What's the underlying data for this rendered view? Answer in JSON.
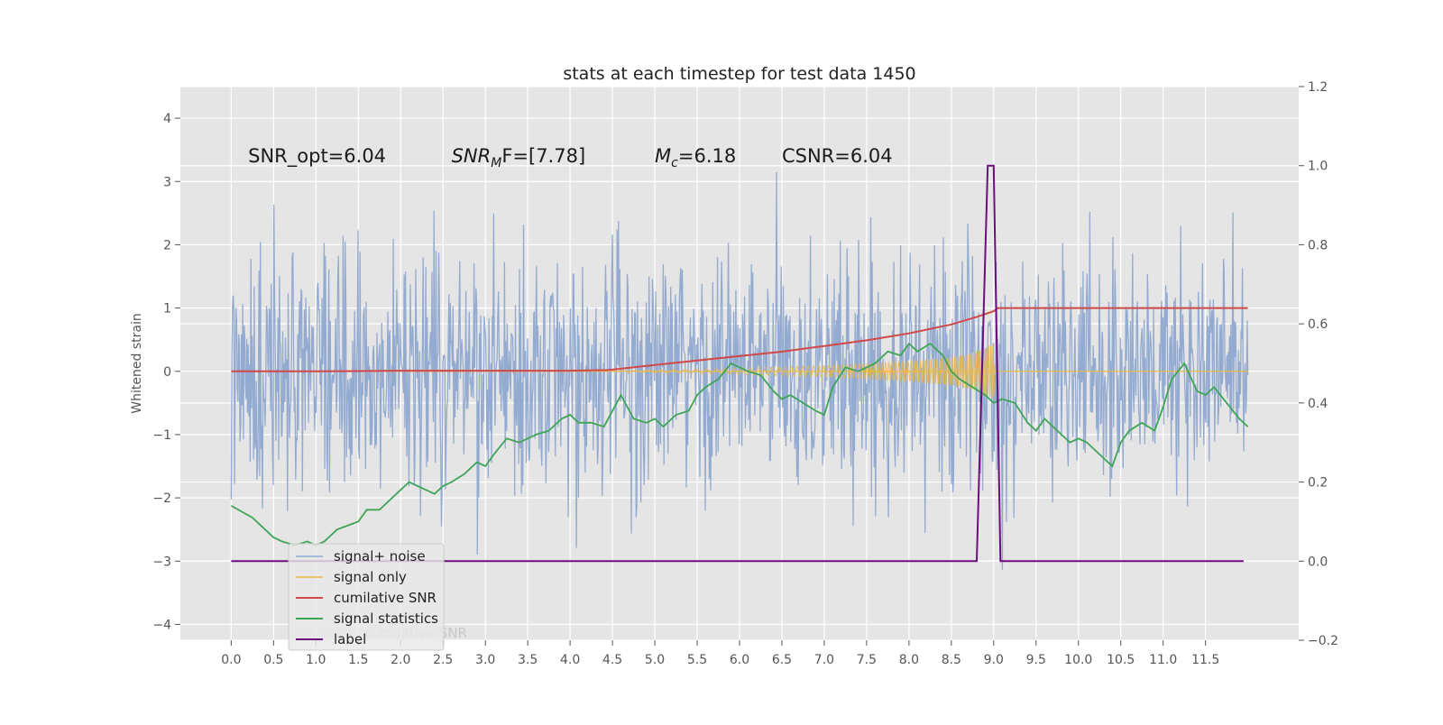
{
  "chart_data": {
    "type": "line",
    "title": "stats at each timestep for test data 1450",
    "xlabel": "",
    "ylabel": "Whitened strain",
    "y2label": "",
    "xlim": [
      -0.6,
      12.6
    ],
    "ylim": [
      -4.25,
      4.5
    ],
    "y2lim": [
      -0.2,
      1.2
    ],
    "grid": true,
    "legend_position": "lower-left",
    "x_ticks": [
      "0.0",
      "0.5",
      "1.0",
      "1.5",
      "2.0",
      "2.5",
      "3.0",
      "3.5",
      "4.0",
      "4.5",
      "5.0",
      "5.5",
      "6.0",
      "6.5",
      "7.0",
      "7.5",
      "8.0",
      "8.5",
      "9.0",
      "9.5",
      "10.0",
      "10.5",
      "11.0",
      "11.5"
    ],
    "y_ticks": [
      "−4",
      "−3",
      "−2",
      "−1",
      "0",
      "1",
      "2",
      "3",
      "4"
    ],
    "y2_ticks": [
      "−0.2",
      "0.0",
      "0.2",
      "0.4",
      "0.6",
      "0.8",
      "1.0",
      "1.2"
    ],
    "annotations": [
      {
        "text": "SNR_opt=6.04",
        "x": 0.2,
        "y": 3.3
      },
      {
        "base": "SNR",
        "sub": "M",
        "after": "F=[7.78]",
        "x": 2.6,
        "y": 3.3
      },
      {
        "base": "M",
        "sub": "c",
        "after": "=6.18",
        "x": 5.0,
        "y": 3.3
      },
      {
        "text": "CSNR=6.04",
        "x": 6.5,
        "y": 3.3
      }
    ],
    "noise": {
      "x_start": 0.0,
      "x_end": 12.0,
      "samples": 1500,
      "sigma": 0.95
    },
    "series": [
      {
        "name": "signal+ noise",
        "color": "#8fa8d0",
        "axis": "left",
        "style": "noise"
      },
      {
        "name": "signal only",
        "color": "#e8b84a",
        "axis": "left",
        "style": "chirp",
        "envelope_x": [
          4.4,
          5.0,
          6.0,
          7.0,
          7.5,
          8.0,
          8.5,
          8.8,
          9.0,
          9.02,
          12.0
        ],
        "envelope_amp": [
          0.0,
          0.02,
          0.05,
          0.09,
          0.12,
          0.16,
          0.22,
          0.3,
          0.45,
          0.0,
          0.0
        ]
      },
      {
        "name": "cumilative SNR",
        "color": "#d04848",
        "axis": "left",
        "x": [
          0.0,
          1.0,
          2.0,
          3.0,
          4.0,
          4.45,
          5.0,
          5.5,
          6.0,
          6.5,
          7.0,
          7.5,
          8.0,
          8.5,
          8.8,
          9.0,
          9.05,
          10.0,
          11.0,
          12.0
        ],
        "y": [
          0.0,
          0.0,
          0.01,
          0.01,
          0.01,
          0.02,
          0.1,
          0.17,
          0.24,
          0.31,
          0.4,
          0.49,
          0.6,
          0.74,
          0.86,
          0.95,
          1.0,
          1.0,
          1.0,
          1.0
        ]
      },
      {
        "name": "signal statistics",
        "color": "#3fa556",
        "axis": "right",
        "x": [
          0.0,
          0.25,
          0.4,
          0.5,
          0.6,
          0.75,
          0.9,
          1.0,
          1.1,
          1.25,
          1.5,
          1.6,
          1.75,
          1.9,
          2.0,
          2.1,
          2.2,
          2.3,
          2.4,
          2.5,
          2.6,
          2.75,
          2.9,
          3.0,
          3.1,
          3.25,
          3.4,
          3.5,
          3.6,
          3.75,
          3.9,
          4.0,
          4.1,
          4.25,
          4.4,
          4.5,
          4.6,
          4.75,
          4.9,
          5.0,
          5.1,
          5.25,
          5.4,
          5.5,
          5.6,
          5.75,
          5.9,
          6.0,
          6.1,
          6.25,
          6.4,
          6.5,
          6.6,
          6.75,
          6.9,
          7.0,
          7.1,
          7.25,
          7.4,
          7.5,
          7.6,
          7.75,
          7.9,
          8.0,
          8.1,
          8.25,
          8.4,
          8.5,
          8.6,
          8.75,
          8.9,
          9.0,
          9.1,
          9.25,
          9.4,
          9.5,
          9.6,
          9.75,
          9.9,
          10.0,
          10.1,
          10.25,
          10.4,
          10.5,
          10.6,
          10.75,
          10.9,
          11.0,
          11.1,
          11.25,
          11.4,
          11.5,
          11.6,
          11.75,
          11.9,
          12.0
        ],
        "y": [
          0.14,
          0.11,
          0.08,
          0.06,
          0.05,
          0.04,
          0.05,
          0.04,
          0.05,
          0.08,
          0.1,
          0.13,
          0.13,
          0.16,
          0.18,
          0.2,
          0.19,
          0.18,
          0.17,
          0.19,
          0.2,
          0.22,
          0.25,
          0.24,
          0.27,
          0.31,
          0.3,
          0.31,
          0.32,
          0.33,
          0.36,
          0.37,
          0.35,
          0.35,
          0.34,
          0.38,
          0.42,
          0.36,
          0.35,
          0.36,
          0.34,
          0.37,
          0.38,
          0.42,
          0.44,
          0.46,
          0.5,
          0.49,
          0.48,
          0.47,
          0.43,
          0.41,
          0.42,
          0.4,
          0.38,
          0.37,
          0.44,
          0.49,
          0.48,
          0.49,
          0.5,
          0.53,
          0.52,
          0.55,
          0.53,
          0.55,
          0.52,
          0.48,
          0.46,
          0.44,
          0.42,
          0.4,
          0.41,
          0.4,
          0.35,
          0.33,
          0.36,
          0.33,
          0.3,
          0.31,
          0.3,
          0.27,
          0.24,
          0.3,
          0.33,
          0.35,
          0.33,
          0.39,
          0.46,
          0.5,
          0.43,
          0.42,
          0.44,
          0.4,
          0.36,
          0.34
        ]
      },
      {
        "name": "label",
        "color": "#6b0f7a",
        "axis": "right",
        "x": [
          0.0,
          8.8,
          8.93,
          9.0,
          9.08,
          11.95
        ],
        "y": [
          0.0,
          0.0,
          1.0,
          1.0,
          0.0,
          0.0
        ]
      }
    ],
    "hidden_legend_text": "cumilative SNR"
  }
}
